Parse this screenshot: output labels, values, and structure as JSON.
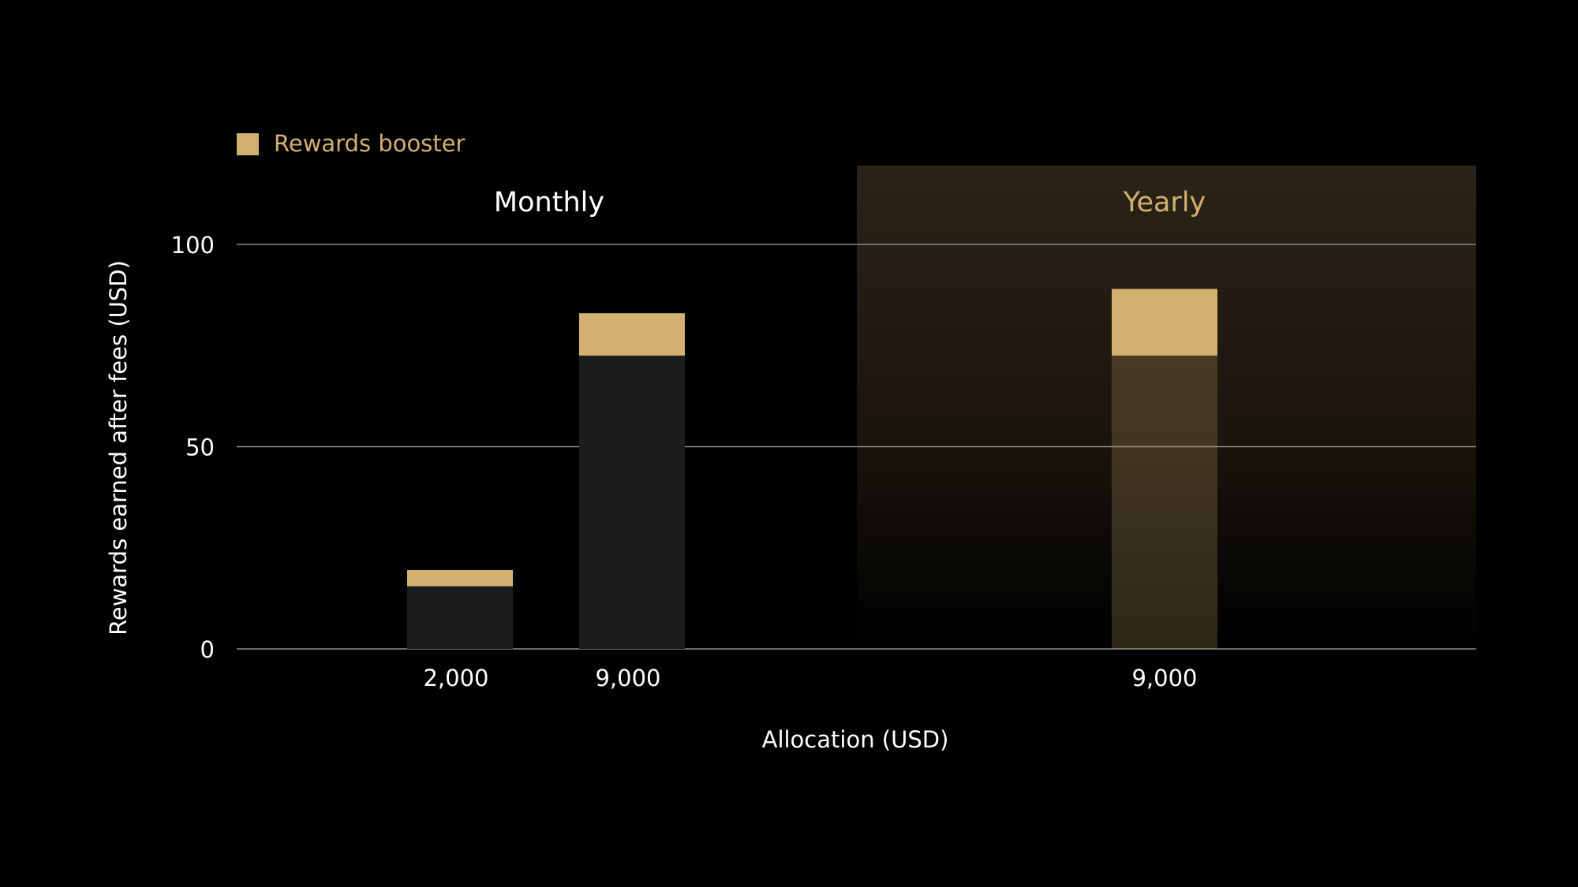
{
  "chart_data": {
    "type": "bar",
    "stacked": true,
    "legend": {
      "label": "Rewards booster",
      "position": "top-left"
    },
    "panels": [
      {
        "label": "Monthly",
        "highlighted": false
      },
      {
        "label": "Yearly",
        "highlighted": true
      }
    ],
    "categories": [
      "2,000",
      "9,000",
      "9,000"
    ],
    "category_panel": [
      "Monthly",
      "Monthly",
      "Yearly"
    ],
    "series": [
      {
        "role": "base",
        "values": [
          15.5,
          72.5,
          72.5
        ]
      },
      {
        "name": "Rewards booster",
        "values": [
          4,
          10.5,
          16.5
        ]
      }
    ],
    "xlabel": "Allocation (USD)",
    "ylabel": "Rewards earned after fees (USD)",
    "ylim": [
      0,
      100
    ],
    "yticks": [
      0,
      50,
      100
    ],
    "grid": true
  },
  "colors": {
    "background": "#000000",
    "base_bar": "#1c1c1c",
    "booster": "#d2b06f",
    "yearly_label": "#d2b06f",
    "text": "#ffffff",
    "grid": "#8a8a8a"
  }
}
